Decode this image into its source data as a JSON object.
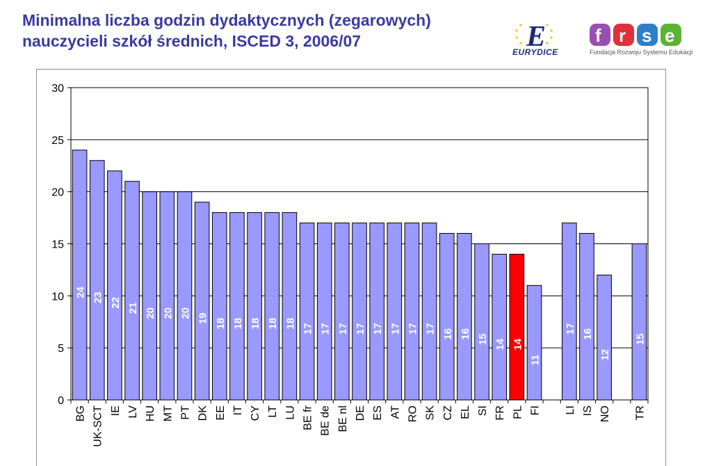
{
  "header": {
    "title_line1": "Minimalna liczba godzin dydaktycznych (zegarowych)",
    "title_line2": "nauczycieli szkół średnich, ISCED 3, 2006/07"
  },
  "logos": {
    "eurydice_text": "EURYDICE",
    "frse_text": "frse",
    "frse_tagline": "Fundacja Rozwoju Systemu Edukacji"
  },
  "colors": {
    "title": "#3a3aa0",
    "bar": "#9999ff",
    "bar_highlight": "#ff0000",
    "bar_outline": "#000000"
  },
  "chart_data": {
    "type": "bar",
    "title": "",
    "xlabel": "",
    "ylabel": "",
    "ylim": [
      0,
      30
    ],
    "yticks": [
      0,
      5,
      10,
      15,
      20,
      25,
      30
    ],
    "grid": "horizontal",
    "legend": "none",
    "categories": [
      "BG",
      "UK-SCT",
      "IE",
      "LV",
      "HU",
      "MT",
      "PT",
      "DK",
      "EE",
      "IT",
      "CY",
      "LT",
      "LU",
      "BE fr",
      "BE de",
      "BE nl",
      "DE",
      "ES",
      "AT",
      "RO",
      "SK",
      "CZ",
      "EL",
      "SI",
      "FR",
      "PL",
      "FI",
      "",
      "LI",
      "IS",
      "NO",
      "",
      "TR"
    ],
    "values": [
      24,
      23,
      22,
      21,
      20,
      20,
      20,
      19,
      18,
      18,
      18,
      18,
      18,
      17,
      17,
      17,
      17,
      17,
      17,
      17,
      17,
      16,
      16,
      15,
      14,
      14,
      11,
      null,
      17,
      16,
      12,
      null,
      15
    ],
    "highlight": "PL",
    "data_labels": "inside, rotated"
  }
}
